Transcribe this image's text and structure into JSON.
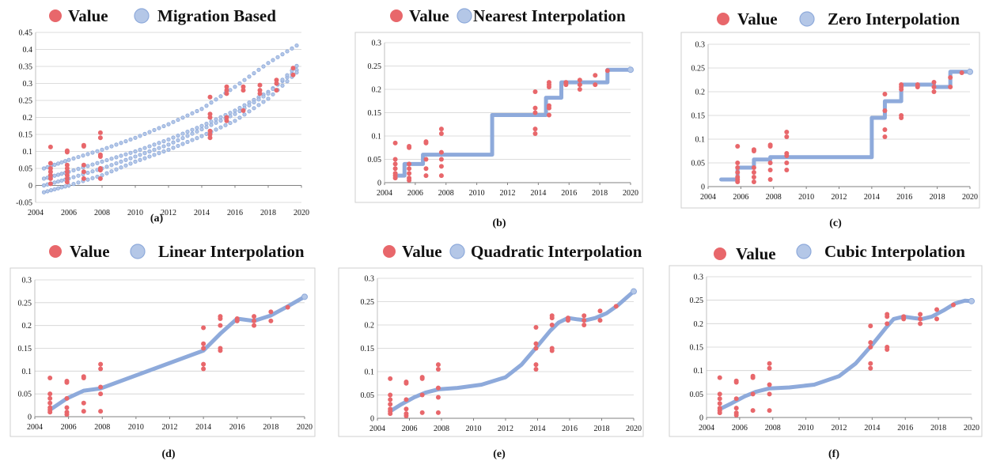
{
  "colors": {
    "value": "#e8676b",
    "interp": "#8eaadb",
    "interp_fill": "#b4c7e7",
    "grid": "#d0d0d0",
    "frame": "#cfcfcf"
  },
  "legend": {
    "value_label": "Value"
  },
  "chart_data": [
    {
      "type": "scatter",
      "title": "Migration Based",
      "caption": "(a)",
      "xlim": [
        2004,
        2020
      ],
      "ylim": [
        -0.05,
        0.45
      ],
      "xticks": [
        "2004",
        "2006",
        "2008",
        "2010",
        "2012",
        "2014",
        "2016",
        "2018",
        "2020"
      ],
      "yticks": [
        "-0.05",
        "0",
        "0.05",
        "0.1",
        "0.15",
        "0.2",
        "0.25",
        "0.3",
        "0.35",
        "0.4",
        "0.45"
      ],
      "grid": "horizontal",
      "legend_position": "top",
      "series": [
        {
          "name": "Value",
          "x": [
            2004.9,
            2004.9,
            2004.9,
            2004.9,
            2004.9,
            2004.9,
            2004.9,
            2005.9,
            2005.9,
            2005.9,
            2005.9,
            2005.9,
            2005.9,
            2005.9,
            2005.9,
            2006.9,
            2006.9,
            2006.9,
            2006.9,
            2006.9,
            2007.9,
            2007.9,
            2007.9,
            2007.9,
            2007.9,
            2007.9,
            2007.9,
            2014.5,
            2014.5,
            2014.5,
            2014.5,
            2014.5,
            2014.5,
            2015.5,
            2015.5,
            2015.5,
            2015.5,
            2015.5,
            2016.5,
            2016.5,
            2016.5,
            2017.5,
            2017.5,
            2017.5,
            2018.5,
            2018.5,
            2018.5,
            2019.5,
            2019.5
          ],
          "y": [
            0.113,
            0.065,
            0.05,
            0.04,
            0.03,
            0.02,
            0.005,
            0.102,
            0.098,
            0.06,
            0.05,
            0.04,
            0.03,
            0.02,
            0.01,
            0.118,
            0.115,
            0.06,
            0.04,
            0.02,
            0.155,
            0.14,
            0.09,
            0.085,
            0.05,
            0.045,
            0.02,
            0.26,
            0.21,
            0.2,
            0.16,
            0.15,
            0.14,
            0.29,
            0.28,
            0.27,
            0.2,
            0.19,
            0.29,
            0.28,
            0.22,
            0.295,
            0.28,
            0.27,
            0.31,
            0.3,
            0.28,
            0.345,
            0.325
          ]
        },
        {
          "name": "Migration Based",
          "kind": "bands",
          "x": [
            2004.5,
            2006,
            2008,
            2010,
            2012,
            2014,
            2016,
            2018,
            2020
          ],
          "bands": [
            {
              "y": [
                0.05,
                0.075,
                0.105,
                0.14,
                0.18,
                0.225,
                0.29,
                0.36,
                0.42
              ]
            },
            {
              "y": [
                0.02,
                0.04,
                0.07,
                0.1,
                0.135,
                0.175,
                0.22,
                0.275,
                0.35
              ]
            },
            {
              "y": [
                0.0,
                0.02,
                0.05,
                0.085,
                0.12,
                0.165,
                0.21,
                0.27,
                0.365
              ]
            },
            {
              "y": [
                -0.02,
                0.0,
                0.03,
                0.07,
                0.105,
                0.145,
                0.19,
                0.255,
                0.345
              ]
            }
          ]
        }
      ]
    },
    {
      "type": "scatter",
      "title": "Nearest Interpolation",
      "caption": "(b)",
      "xlim": [
        2004,
        2020
      ],
      "ylim": [
        0,
        0.3
      ],
      "xticks": [
        "2004",
        "2006",
        "2008",
        "2010",
        "2012",
        "2014",
        "2016",
        "2018",
        "2020"
      ],
      "yticks": [
        "0",
        "0.05",
        "0.1",
        "0.15",
        "0.2",
        "0.25",
        "0.3"
      ],
      "grid": "horizontal",
      "legend_position": "top",
      "series": [
        {
          "name": "Value",
          "x": [
            2004.7,
            2004.7,
            2004.7,
            2004.7,
            2004.7,
            2004.7,
            2004.7,
            2005.6,
            2005.6,
            2005.6,
            2005.6,
            2005.6,
            2005.6,
            2005.6,
            2006.7,
            2006.7,
            2006.7,
            2006.7,
            2006.7,
            2007.7,
            2007.7,
            2007.7,
            2007.7,
            2007.7,
            2007.7,
            2013.8,
            2013.8,
            2013.8,
            2013.8,
            2013.8,
            2014.7,
            2014.7,
            2014.7,
            2014.7,
            2014.7,
            2014.7,
            2015.8,
            2015.8,
            2016.7,
            2016.7,
            2016.7,
            2017.7,
            2017.7,
            2018.5
          ],
          "y": [
            0.085,
            0.05,
            0.04,
            0.03,
            0.02,
            0.015,
            0.01,
            0.078,
            0.075,
            0.04,
            0.03,
            0.02,
            0.01,
            0.005,
            0.088,
            0.085,
            0.05,
            0.03,
            0.015,
            0.115,
            0.105,
            0.065,
            0.05,
            0.035,
            0.015,
            0.195,
            0.16,
            0.15,
            0.115,
            0.105,
            0.215,
            0.21,
            0.205,
            0.165,
            0.16,
            0.145,
            0.215,
            0.21,
            0.22,
            0.21,
            0.2,
            0.23,
            0.21,
            0.24
          ]
        },
        {
          "name": "Nearest Interpolation",
          "kind": "line",
          "x": [
            2004.7,
            2005.3,
            2005.3,
            2006.5,
            2006.5,
            2011,
            2011,
            2014.5,
            2014.5,
            2015.5,
            2015.5,
            2018.5,
            2018.5,
            2020
          ],
          "y": [
            0.015,
            0.015,
            0.04,
            0.04,
            0.06,
            0.06,
            0.145,
            0.145,
            0.182,
            0.182,
            0.215,
            0.215,
            0.242,
            0.242
          ]
        }
      ]
    },
    {
      "type": "scatter",
      "title": "Zero Interpolation",
      "caption": "(c)",
      "xlim": [
        2004,
        2020
      ],
      "ylim": [
        0,
        0.3
      ],
      "xticks": [
        "2004",
        "2006",
        "2008",
        "2010",
        "2012",
        "2014",
        "2016",
        "2018",
        "2020"
      ],
      "yticks": [
        "0",
        "0.05",
        "0.1",
        "0.15",
        "0.2",
        "0.25",
        "0.3"
      ],
      "grid": "horizontal",
      "legend_position": "top",
      "series": [
        {
          "name": "Value",
          "x": [
            2005.8,
            2005.8,
            2005.8,
            2005.8,
            2005.8,
            2005.8,
            2005.8,
            2006.8,
            2006.8,
            2006.8,
            2006.8,
            2006.8,
            2006.8,
            2007.8,
            2007.8,
            2007.8,
            2007.8,
            2007.8,
            2008.8,
            2008.8,
            2008.8,
            2008.8,
            2008.8,
            2008.8,
            2014.8,
            2014.8,
            2014.8,
            2014.8,
            2015.8,
            2015.8,
            2015.8,
            2015.8,
            2015.8,
            2016.8,
            2016.8,
            2017.8,
            2017.8,
            2017.8,
            2018.8,
            2018.8,
            2019.5
          ],
          "y": [
            0.085,
            0.05,
            0.04,
            0.03,
            0.02,
            0.015,
            0.01,
            0.078,
            0.075,
            0.04,
            0.03,
            0.02,
            0.01,
            0.088,
            0.085,
            0.05,
            0.035,
            0.015,
            0.115,
            0.105,
            0.07,
            0.065,
            0.05,
            0.035,
            0.195,
            0.16,
            0.12,
            0.105,
            0.215,
            0.21,
            0.205,
            0.15,
            0.145,
            0.215,
            0.21,
            0.22,
            0.21,
            0.2,
            0.23,
            0.21,
            0.24
          ]
        },
        {
          "name": "Zero Interpolation",
          "kind": "line",
          "x": [
            2004.8,
            2005.8,
            2005.8,
            2006.8,
            2006.8,
            2007.8,
            2007.8,
            2014,
            2014,
            2014.8,
            2014.8,
            2015.8,
            2015.8,
            2017.8,
            2017.8,
            2018.8,
            2018.8,
            2020
          ],
          "y": [
            0.015,
            0.015,
            0.04,
            0.04,
            0.057,
            0.057,
            0.062,
            0.062,
            0.145,
            0.145,
            0.18,
            0.18,
            0.215,
            0.215,
            0.21,
            0.21,
            0.242,
            0.242
          ]
        }
      ]
    },
    {
      "type": "scatter",
      "title": "Linear Interpolation",
      "caption": "(d)",
      "xlim": [
        2004,
        2020
      ],
      "ylim": [
        0,
        0.3
      ],
      "xticks": [
        "2004",
        "2006",
        "2008",
        "2010",
        "2012",
        "2014",
        "2016",
        "2018",
        "2020"
      ],
      "yticks": [
        "0",
        "0.05",
        "0.1",
        "0.15",
        "0.2",
        "0.25",
        "0.3"
      ],
      "grid": "horizontal",
      "legend_position": "top",
      "series": [
        {
          "name": "Value",
          "x": [
            2004.9,
            2004.9,
            2004.9,
            2004.9,
            2004.9,
            2004.9,
            2004.9,
            2005.9,
            2005.9,
            2005.9,
            2005.9,
            2005.9,
            2005.9,
            2006.9,
            2006.9,
            2006.9,
            2006.9,
            2007.9,
            2007.9,
            2007.9,
            2007.9,
            2007.9,
            2014,
            2014,
            2014,
            2014,
            2014,
            2015,
            2015,
            2015,
            2015,
            2015,
            2016,
            2016,
            2017,
            2017,
            2017,
            2018,
            2018,
            2019
          ],
          "y": [
            0.085,
            0.05,
            0.04,
            0.03,
            0.02,
            0.015,
            0.01,
            0.078,
            0.075,
            0.04,
            0.02,
            0.01,
            0.005,
            0.088,
            0.085,
            0.03,
            0.012,
            0.115,
            0.105,
            0.065,
            0.05,
            0.012,
            0.195,
            0.16,
            0.15,
            0.115,
            0.105,
            0.22,
            0.215,
            0.2,
            0.15,
            0.145,
            0.215,
            0.21,
            0.22,
            0.21,
            0.2,
            0.23,
            0.21,
            0.24
          ]
        },
        {
          "name": "Linear Interpolation",
          "kind": "line",
          "x": [
            2004.9,
            2005.9,
            2006.9,
            2007.9,
            2014,
            2015,
            2016,
            2017,
            2018,
            2019,
            2020
          ],
          "y": [
            0.015,
            0.04,
            0.057,
            0.062,
            0.145,
            0.182,
            0.215,
            0.21,
            0.222,
            0.242,
            0.263
          ]
        }
      ]
    },
    {
      "type": "scatter",
      "title": "Quadratic Interpolation",
      "caption": "(e)",
      "xlim": [
        2004,
        2020
      ],
      "ylim": [
        0,
        0.3
      ],
      "xticks": [
        "2004",
        "2006",
        "2008",
        "2010",
        "2012",
        "2014",
        "2016",
        "2018",
        "2020"
      ],
      "yticks": [
        "0",
        "0.05",
        "0.1",
        "0.15",
        "0.2",
        "0.25",
        "0.3"
      ],
      "grid": "horizontal",
      "legend_position": "top",
      "series": [
        {
          "name": "Value",
          "x": [
            2004.8,
            2004.8,
            2004.8,
            2004.8,
            2004.8,
            2004.8,
            2004.8,
            2005.8,
            2005.8,
            2005.8,
            2005.8,
            2005.8,
            2005.8,
            2006.8,
            2006.8,
            2006.8,
            2006.8,
            2007.8,
            2007.8,
            2007.8,
            2007.8,
            2007.8,
            2013.9,
            2013.9,
            2013.9,
            2013.9,
            2013.9,
            2014.9,
            2014.9,
            2014.9,
            2014.9,
            2014.9,
            2015.9,
            2015.9,
            2016.9,
            2016.9,
            2016.9,
            2017.9,
            2017.9,
            2018.9
          ],
          "y": [
            0.085,
            0.05,
            0.04,
            0.03,
            0.02,
            0.015,
            0.01,
            0.078,
            0.075,
            0.04,
            0.02,
            0.01,
            0.005,
            0.088,
            0.085,
            0.05,
            0.012,
            0.115,
            0.105,
            0.065,
            0.045,
            0.012,
            0.195,
            0.16,
            0.15,
            0.115,
            0.105,
            0.22,
            0.215,
            0.2,
            0.15,
            0.145,
            0.215,
            0.21,
            0.22,
            0.21,
            0.2,
            0.23,
            0.21,
            0.24
          ]
        },
        {
          "name": "Quadratic Interpolation",
          "kind": "line",
          "x": [
            2004.8,
            2005.5,
            2006.3,
            2007,
            2007.8,
            2009,
            2010.5,
            2012,
            2013,
            2014,
            2014.8,
            2015.3,
            2015.9,
            2016.5,
            2017,
            2017.6,
            2018.3,
            2019,
            2020
          ],
          "y": [
            0.015,
            0.03,
            0.045,
            0.055,
            0.062,
            0.065,
            0.072,
            0.088,
            0.115,
            0.155,
            0.188,
            0.205,
            0.215,
            0.212,
            0.21,
            0.215,
            0.225,
            0.242,
            0.272
          ]
        }
      ]
    },
    {
      "type": "scatter",
      "title": "Cubic Interpolation",
      "caption": "(f)",
      "xlim": [
        2004,
        2020
      ],
      "ylim": [
        0,
        0.3
      ],
      "xticks": [
        "2004",
        "2006",
        "2008",
        "2010",
        "2012",
        "2014",
        "2016",
        "2018",
        "2020"
      ],
      "yticks": [
        "0",
        "0.05",
        "0.1",
        "0.15",
        "0.2",
        "0.25",
        "0.3"
      ],
      "grid": "horizontal",
      "legend_position": "top",
      "series": [
        {
          "name": "Value",
          "x": [
            2004.8,
            2004.8,
            2004.8,
            2004.8,
            2004.8,
            2004.8,
            2004.8,
            2005.8,
            2005.8,
            2005.8,
            2005.8,
            2005.8,
            2005.8,
            2006.8,
            2006.8,
            2006.8,
            2006.8,
            2007.8,
            2007.8,
            2007.8,
            2007.8,
            2007.8,
            2013.9,
            2013.9,
            2013.9,
            2013.9,
            2013.9,
            2014.9,
            2014.9,
            2014.9,
            2014.9,
            2014.9,
            2015.9,
            2015.9,
            2016.9,
            2016.9,
            2016.9,
            2017.9,
            2017.9,
            2018.9
          ],
          "y": [
            0.085,
            0.05,
            0.04,
            0.03,
            0.02,
            0.015,
            0.01,
            0.078,
            0.075,
            0.04,
            0.02,
            0.01,
            0.005,
            0.088,
            0.085,
            0.05,
            0.015,
            0.115,
            0.105,
            0.07,
            0.05,
            0.015,
            0.195,
            0.16,
            0.15,
            0.115,
            0.105,
            0.22,
            0.215,
            0.2,
            0.15,
            0.145,
            0.215,
            0.21,
            0.22,
            0.21,
            0.2,
            0.23,
            0.21,
            0.24
          ]
        },
        {
          "name": "Cubic Interpolation",
          "kind": "line",
          "x": [
            2004.8,
            2005.5,
            2006.3,
            2007,
            2007.8,
            2009,
            2010.5,
            2012,
            2013,
            2014,
            2014.8,
            2015.3,
            2015.9,
            2016.5,
            2017,
            2017.6,
            2018.3,
            2019,
            2019.6,
            2020
          ],
          "y": [
            0.018,
            0.03,
            0.045,
            0.055,
            0.062,
            0.064,
            0.07,
            0.088,
            0.115,
            0.155,
            0.19,
            0.21,
            0.215,
            0.212,
            0.21,
            0.215,
            0.228,
            0.243,
            0.249,
            0.248
          ]
        }
      ]
    }
  ]
}
